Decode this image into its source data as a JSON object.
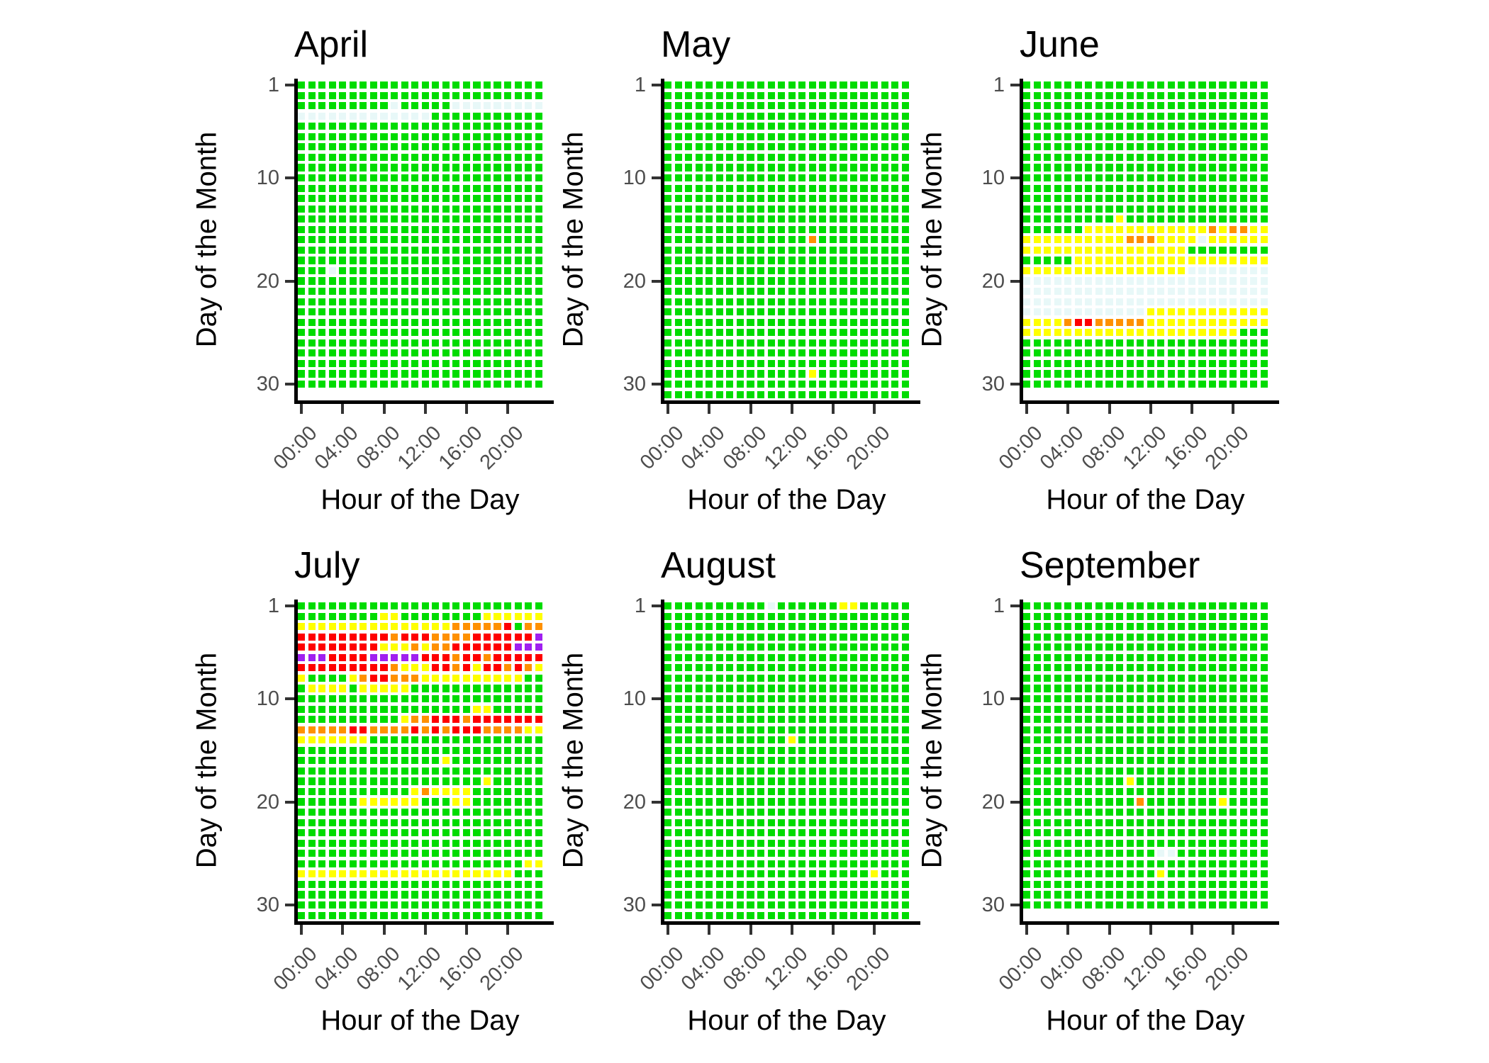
{
  "chart_data": {
    "type": "heatmap",
    "title": "",
    "xlabel": "Hour of the Day",
    "ylabel": "Day of the Month",
    "x_tick_labels": [
      "00:00",
      "04:00",
      "08:00",
      "12:00",
      "16:00",
      "20:00"
    ],
    "x_tick_hours": [
      0,
      4,
      8,
      12,
      16,
      20
    ],
    "y_tick_labels": [
      "1",
      "10",
      "20",
      "30"
    ],
    "y_tick_days": [
      1,
      10,
      20,
      30
    ],
    "hours_per_day": 24,
    "grid": "off",
    "legend": "none",
    "facet_layout": {
      "rows": 2,
      "cols": 3
    },
    "colors": {
      "G": "#00DC00",
      "Y": "#FFFF00",
      "O": "#FF9100",
      "R": "#FF0000",
      "P": "#A020F0",
      "W": "#E8F8F8"
    },
    "color_codes_note": "G=green, Y=yellow, O=orange, R=red, P=purple, W=pale/missing",
    "facets": [
      {
        "title": "April",
        "days": 30,
        "rows": [
          "GGGGGGGGGGGGGGGGGGGGGGGG",
          "GGGGGGGGGGGGGGGGGGGGGGGG",
          "GGGGGGGGGWGGGGGWWWWWWWWW",
          "WWWWWWWWWWWWWGGGGGGGGGGG",
          "GGGGGGGGGGGGGGGGGGGGGGGG",
          "GGGGGGGGGGGGGGGGGGGGGGGG",
          "GGGGGGGGGGGGGGGGGGGGGGGG",
          "GGGGGGGGGGGGGGGGGGGGGGGG",
          "GGGGGGGGGGGGGGGGGGGGGGGG",
          "GGGGGGGGGGGGGGGGGGGGGGGG",
          "GGGGGGGGGGGGGGGGGGGGGGGG",
          "GGGGGGGGGGGGGGGGGGGGGGGG",
          "GGGGGGGGGGGGGGGGGGGGGGGG",
          "GGGGGGGGGGGGGGGGGGGGGGGG",
          "GGGGGGGGGGGGGGGGGGGGGGGG",
          "GGGGGGGGGGGGGGGGGGGGGGGG",
          "GGGGGGGGGGGGGGGGGGGGGGGG",
          "GGGGGGGGGGGGGGGGGGGGGGGG",
          "GGGWGGGGGGGGGGGGGGGGGGGG",
          "GGGGGGGGGGGGGGGGGGGGGGGG",
          "GGGGGGGGGGGGGGGGGGGGGGGG",
          "GGGGGGGGGGGGGGGGGGGGGGGG",
          "GGGGGGGGGGGGGGGGGGGGGGGG",
          "GGGGGGGGGGGGGGGGGGGGGGGG",
          "GGGGGGGGGGGGGGGGGGGGGGGG",
          "GGGGGGGGGGGGGGGGGGGGGGGG",
          "GGGGGGGGGGGGGGGGGGGGGGGG",
          "GGGGGGGGGGGGGGGGGGGGGGGG",
          "GGGGGGGGGGGGGGGGGGGGGGGG",
          "GGGGGGGGGGGGGGGGGGGGGGGG"
        ]
      },
      {
        "title": "May",
        "days": 31,
        "rows": [
          "GGGGGGGGGGGGGGGGGGGGGGGG",
          "GGGGGGGGGGGGGGGGGGGGGGGG",
          "GGGGGGGGGGGGGGGGGGGGGGGG",
          "GGGGGGGGGGGGGGGGGGGGGGGG",
          "GGGGGGGGGGGGGGGGGGGGGGGG",
          "GGGGGGGGGGGGGGGGGGGGGGGG",
          "GGGGGGGGGGGGGGGGGGGGGGGG",
          "GGGGGGGGGGGGGGGGGGGGGGGG",
          "GGGGGGGGGGGGGGGGGGGGGGGG",
          "GGGGGGGGGGGGGGGGGGGGGGGG",
          "GGGGGGGGGGGGGGGGGGGGGGGG",
          "GGGGGGGGGGGGGGGGGGGGGGGG",
          "GGGGGGGGGGGGGGGGGGGGGGGG",
          "GGGGGGGGGGGGGGGGGGGGGGGG",
          "GGGGGGGGGGGGGGGGGGGGGGGG",
          "GGGGGGGGGGGGGGOGGGGGGGGG",
          "GGGGGGGGGGGGGGGGGGGGGGGG",
          "GGGGGGGGGGGGGGGGGGGGGGGG",
          "GGGGGGGGGGGGGGGGGGGGGGGG",
          "GGGGGGGGGGGGGGGGGGGGGGGG",
          "GGGGGGGGGGGGGGGGGGGGGGGG",
          "GGGGGGGGGGGGGGGGGGGGGGGG",
          "GGGGGGGGGGGGGGGGGGGGGGGG",
          "GGGGGGGGGGGGGGGGGGGGGGGG",
          "GGGGGGGGGGGGGGGGGGGGGGGG",
          "GGGGGGGGGGGGGGGGGGGGGGGG",
          "GGGGGGGGGGGGGGGGGGGGGGGG",
          "GGGGGGGGGGGGGGGGGGGGGGGG",
          "GGGGGGGGGGGGGGYGGGGGGGGG",
          "GGGGGGGGGGGGGGGGGGGGGGGG",
          "GGGGGGGGGGGGGGGGGGGGGGGG"
        ]
      },
      {
        "title": "June",
        "days": 30,
        "rows": [
          "GGGGGGGGGGGGGGGGGGGGGGGG",
          "GGGGGGGGGGGGGGGGGGGGGGGG",
          "GGGGGGGGGGGGGGGGGGGGGGGG",
          "GGGGGGGGGGGGGGGGGGGGGGGG",
          "GGGGGGGGGGGGGGGGGGGGGGGG",
          "GGGGGGGGGGGGGGGGGGGGGGGG",
          "GGGGGGGGGGGGGGGGGGGGGGGG",
          "GGGGGGGGGGGGGGGGGGGGGGGG",
          "GGGGGGGGGGGGGGGGGGGGGGGG",
          "GGGGGGGGGGGGGGGGGGGGGGGG",
          "GGGGGGGGGGGGGGGGGGGGGGGG",
          "GGGGGGGGGGGGGGGGGGGGGGGG",
          "GGGGGGGGGGGGGGGGGGGGGGGG",
          "GGGGGGGGGYGGGGGGGGGGGGGG",
          "GGGGGGYYYYYYYYYYYYOYOOYY",
          "YYYYYYYYYYOOOYYYYWYYYYYY",
          "YYYYYYYYYYYYYYYYGGGGGGGG",
          "GGGGGYYYYYYYYYYYYYYYYYYY",
          "YYYYYYYYYYYYYYYYWWWWWWWW",
          "WWWWWWWWWWWWWWWWWWWWWWWW",
          "WWWWWWWWWWWWWWWWWWWWWWWW",
          "WWWWWWWWWWWWWWWWWWWWWWWW",
          "WWWWWWWWWWWWYYYYYYYYYYYY",
          "YYYYORROOOOOYYYYYYYYYYYY",
          "YYYYYYYYYYYYYYYYYYYYYGGG",
          "GGGGGGGGGGGGGGGGGGGGGGGG",
          "GGGGGGGGGGGGGGGGGGGGGGGG",
          "GGGGGGGGGGGGGGGGGGGGGGGG",
          "GGGGGGGGGGGGGGGGGGGGGGGG",
          "GGGGGGGGGGGGGGGGGGGGGGGG"
        ]
      },
      {
        "title": "July",
        "days": 31,
        "rows": [
          "GGGGGGGGGGGGGGGGGGGGGGGG",
          "GGGGGGGGYYGGGGGGGGYYYYYY",
          "YYYYYYYYYYYYYYYOOOOORGOO",
          "RRRRRRRRRORRROOOORRRRRRP",
          "RRRRRRRRYYYOYOORRRRRRPPP",
          "PPPRRRRPPPPPRRRORRORRRRR",
          "RRRRRRRRROYYYRRORYRROROY",
          "YGGGGYORROOOYYYYYYYYYYGG",
          "GYYYYGYYYYYGGGGGGGGGGGGG",
          "GGGGGGGGGGGGGGGGGGGGGGGG",
          "GGGGGGGGGGGGGGGGGYYGGGGG",
          "GGGGGGGGGGYOORRRORRRRRRR",
          "OOOOORROOOORORORRROOOOYY",
          "YYYYYYYGGGGGGGGGGGGGGGGG",
          "GGGGGGGGGGGGGGGGGGGGGGGG",
          "GGGGGGGGGGGGGGYGGGGGGGGG",
          "GGGGGGGGGGGGGGGGGGGGGGGG",
          "GGGGGGGGGGGGGGGGGGYGGGGG",
          "GGGGGGGGGGGYOYYYYGGGGGGG",
          "GGGGGGYYYYYYGGGYYGGGGGGG",
          "GGGGGGGGGGGGGGGGGGGGGGGG",
          "GGGGGGGGGGGGGGGGGGGGGGGG",
          "GGGGGGGGGGGGGGGGGGGGGGGG",
          "GGGGGGGGGGGGGGGGGGGGGGGG",
          "GGGGGGGGGGGGGGGGGGGGGGGG",
          "GGGGGGGGGGGGGGGGGGGGGGYY",
          "YYYYYYYYYYYYYYYYYYYYYGGG",
          "GGGGGGGGGGGGGGGGGGGGGGGG",
          "GGGGGGGGGGGGGGGGGGGGGGGG",
          "GGGGGGGGGGGGGGGGGGGGGGGG",
          "GGGGGGGGGGGGGGGGGGGGGGGG"
        ]
      },
      {
        "title": "August",
        "days": 31,
        "rows": [
          "GGGGGGGGGGWGGGGGGYYGGGGG",
          "GGGGGGGGGGGGGGGGGGGGGGGG",
          "GGGGGGGGGGGGGGGGGGGGGGGG",
          "GGGGGGGGGGGGGGGGGGGGGGGG",
          "GGGGGGGGGGGGGGGGGGGGGGGG",
          "GGGGGGGGGGGGGGGGGGGGGGGG",
          "GGGGGGGGGGGGGGGGGGGGGGGG",
          "GGGGGGGGGGGGGGGGGGGGGGGG",
          "GGGGGGGGGGGGGGGGGGGGGGGG",
          "GGGGGGGGGGGGGGGGGGGGGGGG",
          "GGGGGGGGGGGGGGGGGGGGGGGG",
          "GGGGGGGGGGGGGGGGGGGGGGGG",
          "GGGGGGGGGGGGGGGGGGGGGGGG",
          "GGGGGGGGGGGGYGGGGGGGGGGG",
          "GGGGGGGGGGGGGGGGGGGGGGGG",
          "GGGGGGGGGGGGGGGGGGGGGGGG",
          "GGGGGGGGGGGGGGGGGGGGGGGG",
          "GGGGGGGGGGGGGGGGGGGGGGGG",
          "GGGGGGGGGGGGGGGGGGGGGGGG",
          "GGGGGGGGGGGGGGGGGGGGGGGG",
          "GGGGGGGGGGGGGGGGGGGGGGGG",
          "GGGGGGGGGGGGGGGGGGGGGGGG",
          "GGGGGGGGGGGGGGGGGGGGGGGG",
          "GGGGGGGGGGGGGGGGGGGGGGGG",
          "GGGGGGGGGGGGGGGGGGGGGGGG",
          "GGGGGGGGGGGGGGGGGGGGGGGG",
          "GGGGGGGGGGGGGGGGGGGGYGGG",
          "GGGGGGGGGGGGGGGGGGGGGGGG",
          "GGGGGGGGGGGGGGGGGGGGGGGG",
          "GGGGGGGGGGGGGGGGGGGGGGGG",
          "GGGGGGGGGGGGGGGGGGGGGGGG"
        ]
      },
      {
        "title": "September",
        "days": 30,
        "rows": [
          "GGGGGGGGGGGGGGGGGGGGGGGG",
          "GGGGGGGGGGGGGGGGGGGGGGGG",
          "GGGGGGGGGGGGGGGGGGGGGGGG",
          "GGGGGGGGGGGGGGGGGGGGGGGG",
          "GGGGGGGGGGGGGGGGGGGGGGGG",
          "GGGGGGGGGGGGGGGGGGGGGGGG",
          "GGGGGGGGGGGGGGGGGGGGGGGG",
          "GGGGGGGGGGGGGGGGGGGGGGGG",
          "GGGGGGGGGGGGGGGGGGGGGGGG",
          "GGGGGGGGGGGGGGGGGGGGGGGG",
          "GGGGGGGGGGGGGGGGGGGGGGGG",
          "GGGGGGGGGGGGGGGGGGGGGGGG",
          "GGGGGGGGGGGGGGGGGGGGGGGG",
          "GGGGGGGGGGGGGGGGGGGGGGGG",
          "GGGGGGGGGGGGGGGGGGGGGGGG",
          "GGGGGGGGGGGGGGGGGGGGGGGG",
          "GGGGGGGGGGGGGGGGGGGGGGGG",
          "GGGGGGGGGGYGGGGGGGGGGGGG",
          "GGGGGGGGGGGGGGGGGGGGGGGG",
          "GGGGGGGGGGGOGGGGGGGYGGGG",
          "GGGGGGGGGGGGGGGGGGGGGGGG",
          "GGGGGGGGGGGGGGGGGGGGGGGG",
          "GGGGGGGGGGGGGGGGGGGGGGGG",
          "GGGGGGGGGGGGGGGGGGGGGGGG",
          "GGGGGGGGGGGGGWWGGGGGGGGG",
          "GGGGGGGGGGGGGGGGGGGGGGGG",
          "GGGGGGGGGGGGGYGGGGGGGGGG",
          "GGGGGGGGGGGGGGGGGGGGGGGG",
          "GGGGGGGGGGGGGGGGGGGGGGGG",
          "GGGGGGGGGGGGGGGGGGGGGGGG"
        ]
      }
    ]
  }
}
